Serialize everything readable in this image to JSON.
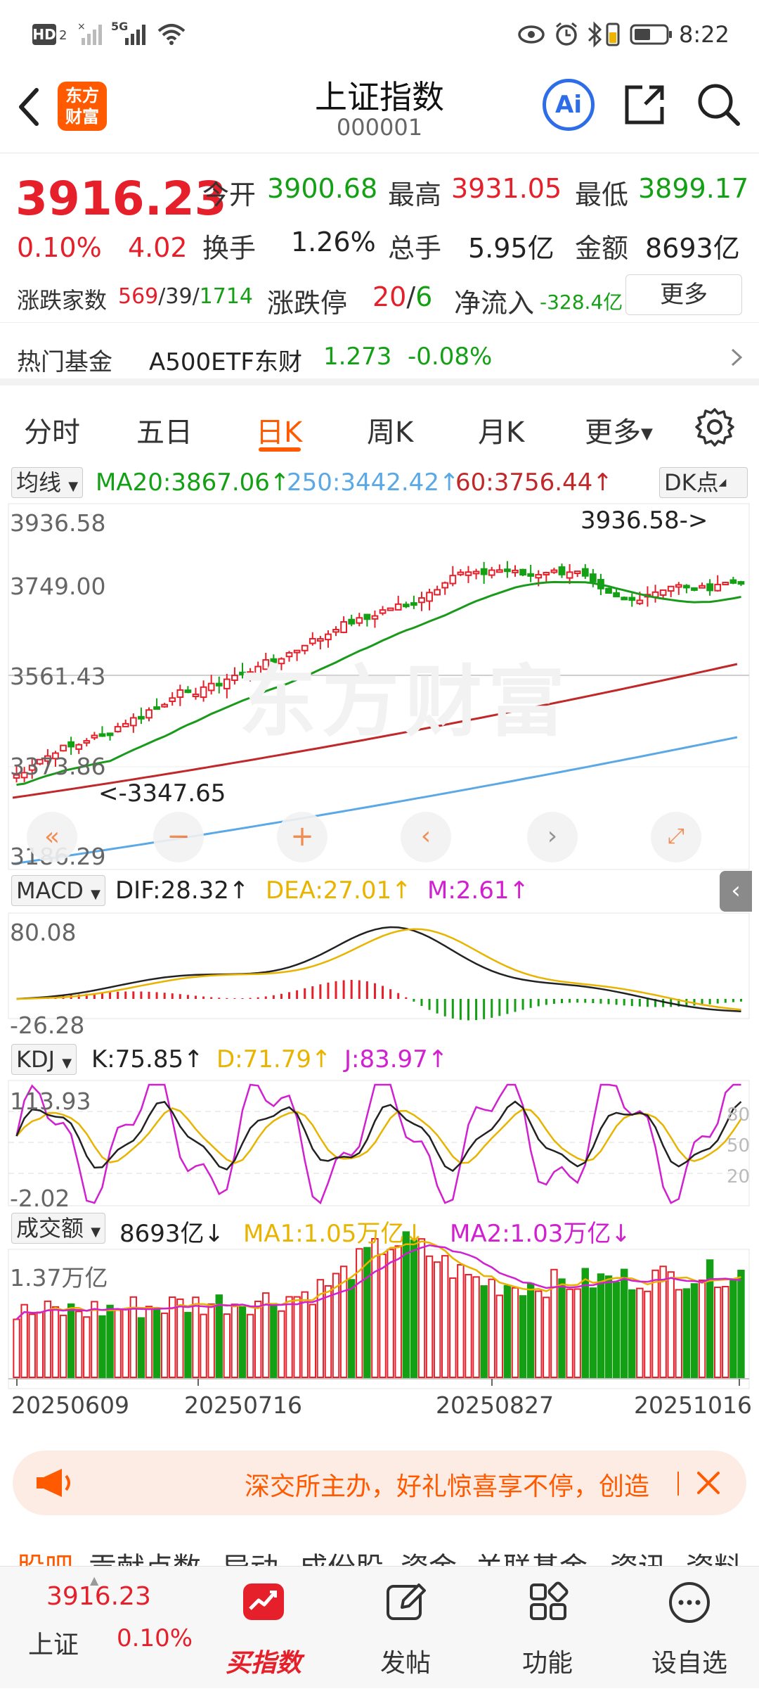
{
  "status_bar": {
    "left_icons": [
      "hd-icon",
      "signal-x-icon",
      "signal-5g-icon",
      "wifi-icon"
    ],
    "hd_label": "HD",
    "hd_sub": "2",
    "five_g": "5G",
    "time": "8:22"
  },
  "header": {
    "title": "上证指数",
    "code": "000001",
    "logo_line1": "东方",
    "logo_line2": "财富",
    "ai_label": "Ai"
  },
  "quote": {
    "price": "3916.23",
    "change_pct": "0.10%",
    "change": "4.02",
    "open_label": "今开",
    "open": "3900.68",
    "high_label": "最高",
    "high": "3931.05",
    "low_label": "最低",
    "low": "3899.17",
    "turnover_label": "换手",
    "turnover": "1.26%",
    "volume_label": "总手",
    "volume": "5.95亿",
    "amount_label": "金额",
    "amount": "8693亿",
    "breadth_label": "涨跌家数",
    "breadth_up": "569",
    "breadth_flat": "39",
    "breadth_down": "1714",
    "sep": "/",
    "limit_label": "涨跌停",
    "limit_up": "20",
    "limit_down": "6",
    "netflow_label": "净流入",
    "netflow": "-328.4亿",
    "more_label": "更多"
  },
  "hot_fund": {
    "label": "热门基金",
    "name": "A500ETF东财",
    "price": "1.273",
    "change": "-0.08%"
  },
  "tabs": [
    "分时",
    "五日",
    "日K",
    "周K",
    "月K",
    "更多"
  ],
  "active_tab": "日K",
  "kline": {
    "ma_select": "均线",
    "ma20": "MA20:3867.06",
    "ma250": "250:3442.42",
    "ma60": "60:3756.44",
    "dk_label": "DK点",
    "y_labels": [
      "3936.58",
      "3749.00",
      "3561.43",
      "3373.86",
      "3186.29"
    ],
    "max_annot": "3936.58->",
    "min_annot": "<-3347.65",
    "watermark": "东方财富"
  },
  "macd": {
    "select": "MACD",
    "dif": "DIF:28.32",
    "dea": "DEA:27.01",
    "m": "M:2.61",
    "y_top": "80.08",
    "y_bottom": "-26.28"
  },
  "kdj": {
    "select": "KDJ",
    "k": "K:75.85",
    "d": "D:71.79",
    "j": "J:83.97",
    "y_top": "113.93",
    "y_bottom": "-2.02",
    "levels": [
      "80",
      "50",
      "20"
    ]
  },
  "volume": {
    "select": "成交额",
    "value": "8693亿",
    "ma1": "MA1:1.05万亿",
    "ma2": "MA2:1.03万亿",
    "y_top": "1.37万亿"
  },
  "x_dates": [
    "20250609",
    "20250716",
    "20250827",
    "20251016"
  ],
  "banner": {
    "text": "深交所主办，好礼惊喜享不停，创造"
  },
  "subtabs": [
    "股吧",
    "贡献点数",
    "异动",
    "成份股",
    "资金",
    "关联基金",
    "资讯",
    "资料"
  ],
  "bottom": {
    "index_price": "3916.23",
    "index_name": "上证",
    "index_pct": "0.10%",
    "buy_label": "买指数",
    "post_label": "发帖",
    "func_label": "功能",
    "watch_label": "设自选"
  },
  "colors": {
    "up": "#e5202a",
    "down": "#14a014",
    "accent": "#ff5a00",
    "ma250": "#5aa8e6",
    "ma60": "#c0282a",
    "dea": "#e8b400",
    "m": "#d020d0"
  }
}
